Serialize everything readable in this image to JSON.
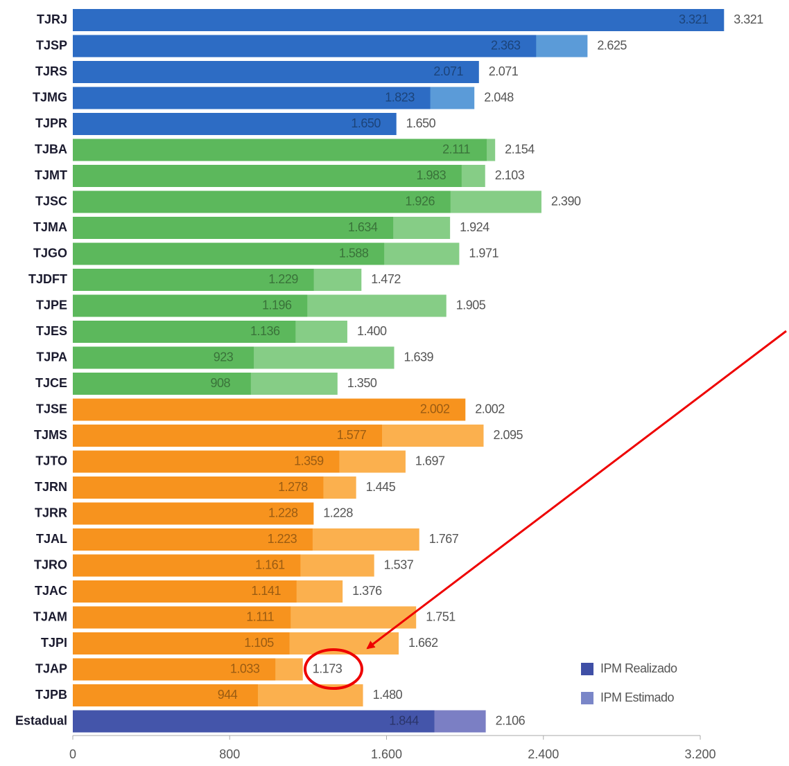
{
  "chart_data": {
    "type": "bar",
    "categories": [
      "TJRJ",
      "TJSP",
      "TJRS",
      "TJMG",
      "TJPR",
      "TJBA",
      "TJMT",
      "TJSC",
      "TJMA",
      "TJGO",
      "TJDFT",
      "TJPE",
      "TJES",
      "TJPA",
      "TJCE",
      "TJSE",
      "TJMS",
      "TJTO",
      "TJRN",
      "TJRR",
      "TJAL",
      "TJRO",
      "TJAC",
      "TJAM",
      "TJPI",
      "TJAP",
      "TJPB",
      "Estadual"
    ],
    "series": [
      {
        "name": "IPM Estimado",
        "color": "#7a86c8",
        "values": [
          3321,
          2625,
          2071,
          2048,
          1650,
          2154,
          2103,
          2390,
          1924,
          1971,
          1472,
          1905,
          1400,
          1639,
          1350,
          2002,
          2095,
          1697,
          1445,
          1228,
          1767,
          1537,
          1376,
          1751,
          1662,
          1173,
          1480,
          2106
        ],
        "value_labels": [
          "3.321",
          "2.625",
          "2.071",
          "2.048",
          "1.650",
          "2.154",
          "2.103",
          "2.390",
          "1.924",
          "1.971",
          "1.472",
          "1.905",
          "1.400",
          "1.639",
          "1.350",
          "2.002",
          "2.095",
          "1.697",
          "1.445",
          "1.228",
          "1.767",
          "1.537",
          "1.376",
          "1.751",
          "1.662",
          "1.173",
          "1.480",
          "2.106"
        ],
        "bar_colors": [
          "#5b9bd8",
          "#5b9bd8",
          "#5b9bd8",
          "#5b9bd8",
          "#5b9bd8",
          "#86cd86",
          "#86cd86",
          "#86cd86",
          "#86cd86",
          "#86cd86",
          "#86cd86",
          "#86cd86",
          "#86cd86",
          "#86cd86",
          "#86cd86",
          "#fbb04e",
          "#fbb04e",
          "#fbb04e",
          "#fbb04e",
          "#fbb04e",
          "#fbb04e",
          "#fbb04e",
          "#fbb04e",
          "#fbb04e",
          "#fbb04e",
          "#fbb04e",
          "#fbb04e",
          "#7b7fc4"
        ]
      },
      {
        "name": "IPM Realizado",
        "color": "#3f4fa6",
        "values": [
          3321,
          2363,
          2071,
          1823,
          1650,
          2111,
          1983,
          1926,
          1634,
          1588,
          1229,
          1196,
          1136,
          923,
          908,
          2002,
          1577,
          1359,
          1278,
          1228,
          1223,
          1161,
          1141,
          1111,
          1105,
          1033,
          944,
          1844
        ],
        "value_labels": [
          "3.321",
          "2.363",
          "2.071",
          "1.823",
          "1.650",
          "2.111",
          "1.983",
          "1.926",
          "1.634",
          "1.588",
          "1.229",
          "1.196",
          "1.136",
          "923",
          "908",
          "2.002",
          "1.577",
          "1.359",
          "1.278",
          "1.228",
          "1.223",
          "1.161",
          "1.141",
          "1.111",
          "1.105",
          "1.033",
          "944",
          "1.844"
        ],
        "bar_colors": [
          "#2d6cc4",
          "#2d6cc4",
          "#2d6cc4",
          "#2d6cc4",
          "#2d6cc4",
          "#5cb85c",
          "#5cb85c",
          "#5cb85c",
          "#5cb85c",
          "#5cb85c",
          "#5cb85c",
          "#5cb85c",
          "#5cb85c",
          "#5cb85c",
          "#5cb85c",
          "#f7931e",
          "#f7931e",
          "#f7931e",
          "#f7931e",
          "#f7931e",
          "#f7931e",
          "#f7931e",
          "#f7931e",
          "#f7931e",
          "#f7931e",
          "#f7931e",
          "#f7931e",
          "#4455aa"
        ]
      }
    ],
    "xlim": [
      0,
      3200
    ],
    "xticks": [
      0,
      800,
      {
        "value": 1600,
        "label": "1.600"
      },
      {
        "value": 2400,
        "label": "2.400"
      },
      {
        "value": 3200,
        "label": "3.200"
      }
    ],
    "legend": "bottom-right"
  }
}
